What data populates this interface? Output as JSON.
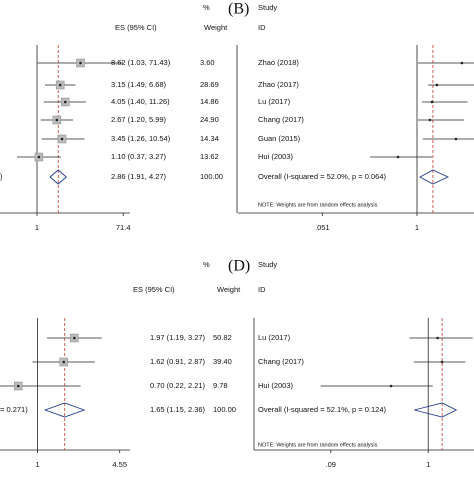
{
  "panels": [
    {
      "es_header": "ES (95% CI)",
      "pct_header": "%",
      "weight_header": "Weight",
      "overall_tail": ")",
      "xlim": [
        0.16,
        100
      ],
      "xticks": [
        1,
        71.4
      ],
      "rows": [
        {
          "es": 8.62,
          "lo": 1.03,
          "hi": 71.43,
          "es_text": "8.62 (1.03, 71.43)",
          "weight": "3.60"
        },
        {
          "es": 3.15,
          "lo": 1.49,
          "hi": 6.68,
          "es_text": "3.15 (1.49, 6.68)",
          "weight": "28.69"
        },
        {
          "es": 4.05,
          "lo": 1.4,
          "hi": 11.26,
          "es_text": "4.05 (1.40, 11.26)",
          "weight": "14.86"
        },
        {
          "es": 2.67,
          "lo": 1.2,
          "hi": 5.99,
          "es_text": "2.67 (1.20, 5.99)",
          "weight": "24.90"
        },
        {
          "es": 3.45,
          "lo": 1.26,
          "hi": 10.54,
          "es_text": "3.45 (1.26, 10.54)",
          "weight": "14.34"
        },
        {
          "es": 1.1,
          "lo": 0.37,
          "hi": 3.27,
          "es_text": "1.10 (0.37, 3.27)",
          "weight": "13.62"
        }
      ],
      "overall": {
        "es": 2.86,
        "lo": 1.91,
        "hi": 4.27,
        "es_text": "2.86 (1.91, 4.27)",
        "weight": "100.00"
      }
    },
    {
      "title": "(B)",
      "study_header": "Study",
      "id_header": "ID",
      "note": "NOTE: Weights are from random effects analysis",
      "xlim": [
        0.0036,
        6
      ],
      "xticks": [
        {
          "value": 0.051,
          "label": ".051"
        },
        1
      ],
      "rows": [
        {
          "study": "Zhao (2018)",
          "es": 4.1,
          "lo": 1.03,
          "hi": 20
        },
        {
          "study": "Zhao (2017)",
          "es": 1.87,
          "lo": 1.41,
          "hi": 6
        },
        {
          "study": "Lu (2017)",
          "es": 1.6,
          "lo": 1.17,
          "hi": 4.9
        },
        {
          "study": "Chang (2017)",
          "es": 1.5,
          "lo": 1.03,
          "hi": 4.4
        },
        {
          "study": "Guan (2015)",
          "es": 3.4,
          "lo": 1.2,
          "hi": 6
        },
        {
          "study": "Hui (2003)",
          "es": 0.55,
          "lo": 0.23,
          "hi": 1.6
        }
      ],
      "overall": {
        "study": "Overall  (I-squared = 52.0%, p = 0.064)",
        "es": 1.65,
        "lo": 1.1,
        "hi": 2.64
      }
    },
    {
      "es_header": "ES (95% CI)",
      "pct_header": "%",
      "weight_header": "Weight",
      "overall_tail": "= 0.271)",
      "xlim": [
        0.5,
        5.5
      ],
      "xticks": [
        1,
        4.55
      ],
      "rows": [
        {
          "es": 1.97,
          "lo": 1.19,
          "hi": 3.27,
          "es_text": "1.97 (1.19, 3.27)",
          "weight": "50.82"
        },
        {
          "es": 1.62,
          "lo": 0.91,
          "hi": 2.87,
          "es_text": "1.62 (0.91, 2.87)",
          "weight": "39.40"
        },
        {
          "es": 0.7,
          "lo": 0.22,
          "hi": 2.21,
          "es_text": "0.70 (0.22, 2.21)",
          "weight": "9.78"
        }
      ],
      "overall": {
        "es": 1.65,
        "lo": 1.15,
        "hi": 2.36,
        "es_text": "1.65 (1.15, 2.36)",
        "weight": "100.00"
      }
    },
    {
      "title": "(D)",
      "study_header": "Study",
      "id_header": "ID",
      "note": "NOTE: Weights are from random effects analysis",
      "xlim": [
        0.0135,
        3.1
      ],
      "xticks": [
        {
          "value": 0.09,
          "label": ".09"
        },
        1
      ],
      "rows": [
        {
          "study": "Lu (2017)",
          "es": 1.26,
          "lo": 0.63,
          "hi": 3.0
        },
        {
          "study": "Chang (2017)",
          "es": 1.41,
          "lo": 0.7,
          "hi": 2.5
        },
        {
          "study": "Hui (2003)",
          "es": 0.4,
          "lo": 0.07,
          "hi": 1.12
        }
      ],
      "overall": {
        "study": "Overall  (I-squared = 52.1%, p = 0.124)",
        "es": 1.41,
        "lo": 0.71,
        "hi": 2.0
      }
    }
  ]
}
